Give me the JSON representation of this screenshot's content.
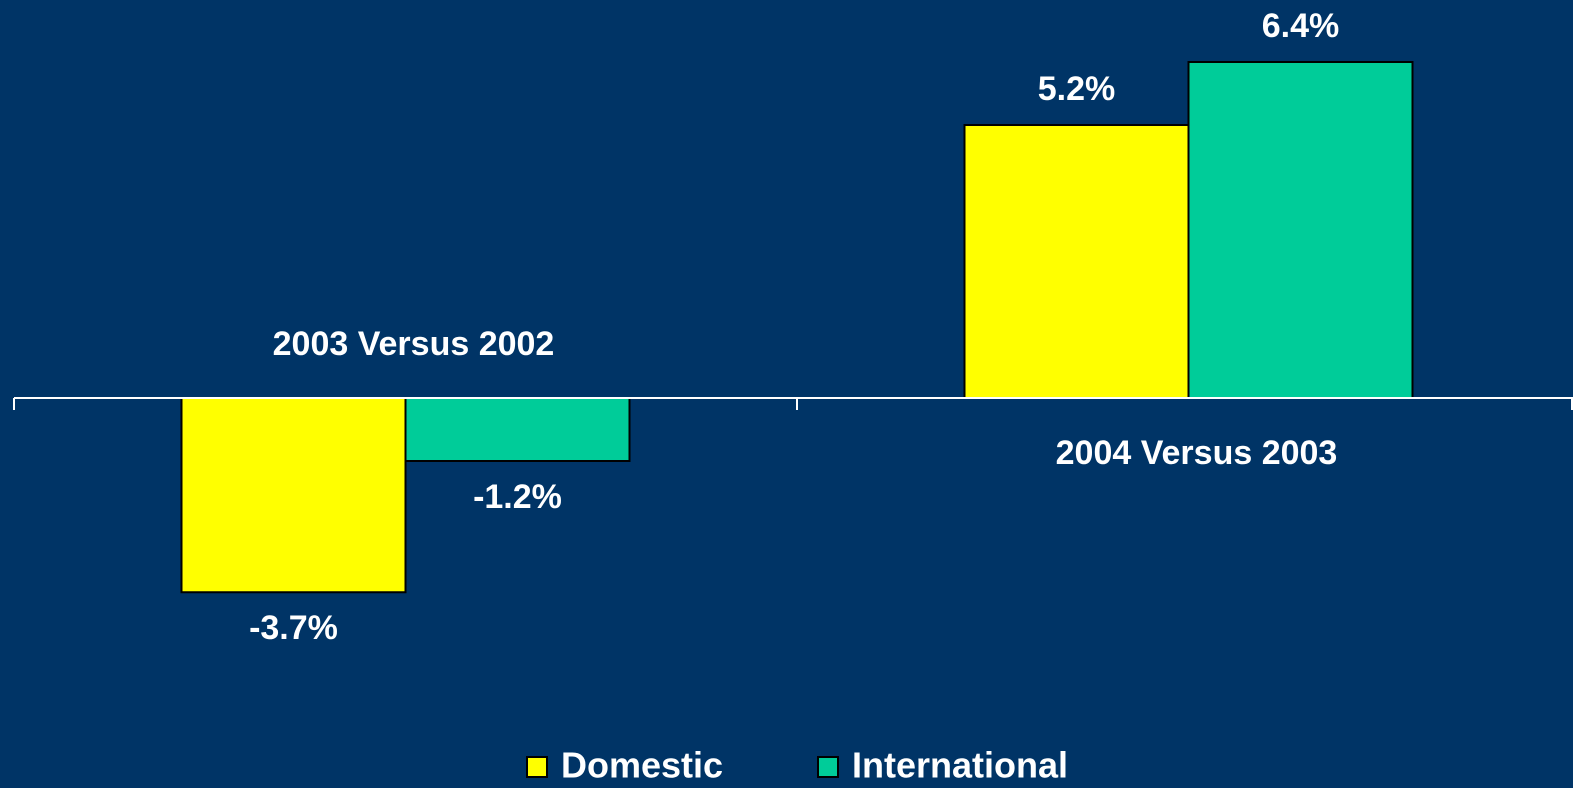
{
  "chart_data": {
    "type": "bar",
    "categories": [
      "2003 Versus 2002",
      "2004 Versus 2003"
    ],
    "series": [
      {
        "name": "Domestic",
        "color": "#ffff00",
        "values": [
          -3.7,
          5.2
        ],
        "value_labels": [
          "-3.7%",
          "5.2%"
        ]
      },
      {
        "name": "International",
        "color": "#00cc99",
        "values": [
          -1.2,
          6.4
        ],
        "value_labels": [
          "-1.2%",
          "6.4%"
        ]
      }
    ],
    "ylim": [
      -7,
      7.5
    ],
    "legend": "bottom"
  }
}
